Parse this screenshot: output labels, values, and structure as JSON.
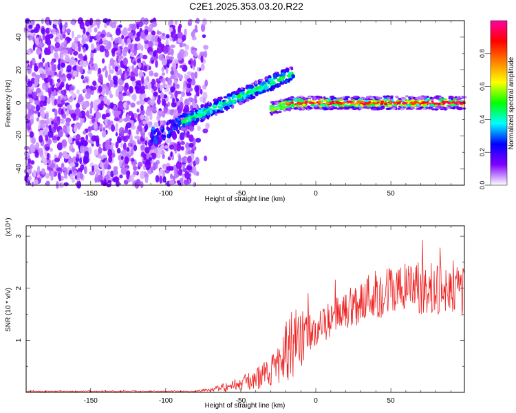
{
  "title": "C2E1.2025.353.03.20.R22",
  "chart_data": [
    {
      "type": "heatmap",
      "xlabel": "Height of straight line (km)",
      "ylabel": "Frequency (Hz)",
      "xlim": [
        -193,
        99
      ],
      "ylim": [
        -50,
        50
      ],
      "x_ticks": [
        -150,
        -100,
        -50,
        0,
        50
      ],
      "y_ticks": [
        -40,
        -20,
        0,
        20,
        40
      ],
      "colorbar": {
        "label": "Normalized spectral amplitude",
        "range": [
          0,
          1
        ],
        "ticks": [
          "0.0",
          "0.2",
          "0.4",
          "0.6",
          "0.8"
        ],
        "colors": [
          "#ffffff",
          "#8000ff",
          "#0000ff",
          "#00ffff",
          "#00ff00",
          "#ffff00",
          "#ff8000",
          "#ff0000",
          "#ff00a0"
        ]
      },
      "regions": [
        {
          "x_range": [
            -193,
            -80
          ],
          "freq_range": [
            -50,
            50
          ],
          "amplitude": 0.1
        },
        {
          "x_range": [
            -110,
            -90
          ],
          "freq_center": -17,
          "amplitude": 0.25
        },
        {
          "x_range": [
            -90,
            -15
          ],
          "freq_start": -12,
          "freq_end": 18,
          "amplitude": 0.4
        },
        {
          "x_range": [
            -30,
            99
          ],
          "freq_center": 0,
          "amplitude": 0.9
        }
      ]
    },
    {
      "type": "line",
      "xlabel": "Height of straight line (km)",
      "ylabel": "SNR (10 * v/v)",
      "y_multiplier": "(x10⁴)",
      "xlim": [
        -193,
        99
      ],
      "ylim": [
        0,
        3.2
      ],
      "x_ticks": [
        -150,
        -100,
        -50,
        0,
        50
      ],
      "y_ticks": [
        1,
        2,
        3
      ],
      "color": "#ee2222",
      "envelope": [
        {
          "x": -193,
          "mean": 0.02,
          "spread": 0.01
        },
        {
          "x": -80,
          "mean": 0.02,
          "spread": 0.01
        },
        {
          "x": -60,
          "mean": 0.1,
          "spread": 0.08
        },
        {
          "x": -40,
          "mean": 0.25,
          "spread": 0.2
        },
        {
          "x": -25,
          "mean": 0.5,
          "spread": 0.35
        },
        {
          "x": -20,
          "mean": 0.9,
          "spread": 0.7
        },
        {
          "x": -10,
          "mean": 1.0,
          "spread": 0.6
        },
        {
          "x": 0,
          "mean": 1.2,
          "spread": 0.3
        },
        {
          "x": 20,
          "mean": 1.6,
          "spread": 0.4
        },
        {
          "x": 40,
          "mean": 1.9,
          "spread": 0.5
        },
        {
          "x": 60,
          "mean": 2.0,
          "spread": 0.5
        },
        {
          "x": 80,
          "mean": 2.0,
          "spread": 0.5
        },
        {
          "x": 99,
          "mean": 1.9,
          "spread": 0.5
        }
      ]
    }
  ]
}
